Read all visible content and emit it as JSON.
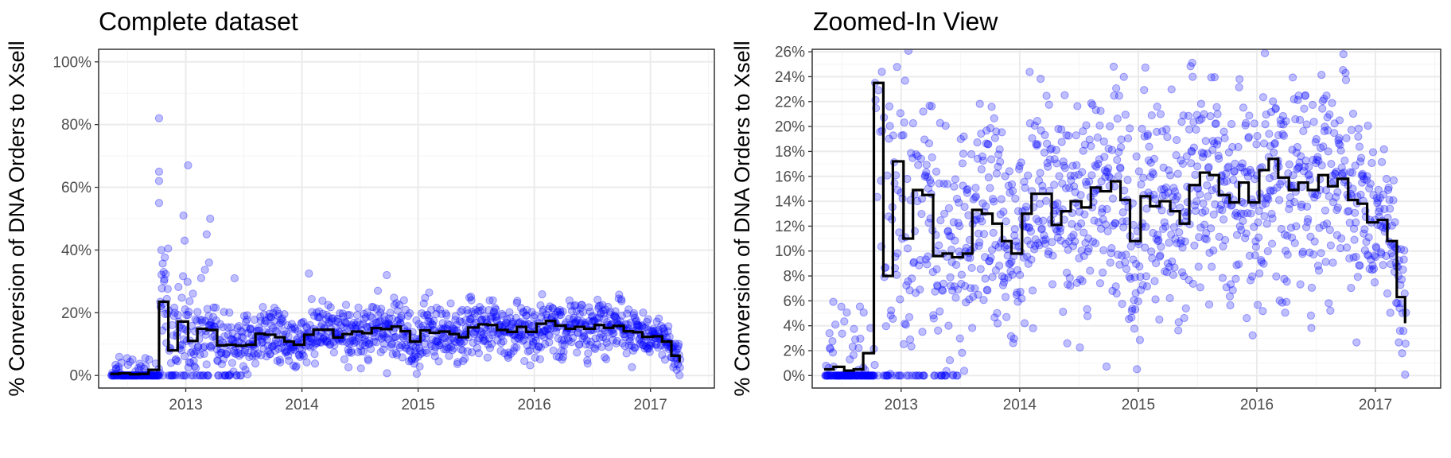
{
  "colors": {
    "points": "#0000ff",
    "step": "#000000"
  },
  "chart_data": [
    {
      "type": "scatter",
      "title": "Complete dataset",
      "ylabel": "% Conversion of DNA Orders to Xsell",
      "xlabel": "",
      "xlim": [
        2012.25,
        2017.55
      ],
      "ylim": [
        -4,
        104
      ],
      "x_ticks": [
        {
          "value": 2013,
          "label": "2013"
        },
        {
          "value": 2014,
          "label": "2014"
        },
        {
          "value": 2015,
          "label": "2015"
        },
        {
          "value": 2016,
          "label": "2016"
        },
        {
          "value": 2017,
          "label": "2017"
        }
      ],
      "y_ticks": [
        {
          "value": 0,
          "label": "0%"
        },
        {
          "value": 20,
          "label": "20%"
        },
        {
          "value": 40,
          "label": "40%"
        },
        {
          "value": 60,
          "label": "60%"
        },
        {
          "value": 80,
          "label": "80%"
        },
        {
          "value": 100,
          "label": "100%"
        }
      ],
      "y_minor": [
        10,
        30,
        50,
        70,
        90
      ],
      "grid": true,
      "legend": "none"
    },
    {
      "type": "scatter",
      "title": "Zoomed-In View",
      "ylabel": "% Conversion of DNA Orders to Xsell",
      "xlabel": "",
      "xlim": [
        2012.25,
        2017.55
      ],
      "ylim": [
        -1,
        26.2
      ],
      "x_ticks": [
        {
          "value": 2013,
          "label": "2013"
        },
        {
          "value": 2014,
          "label": "2014"
        },
        {
          "value": 2015,
          "label": "2015"
        },
        {
          "value": 2016,
          "label": "2016"
        },
        {
          "value": 2017,
          "label": "2017"
        }
      ],
      "y_ticks": [
        {
          "value": 0,
          "label": "0%"
        },
        {
          "value": 2,
          "label": "2%"
        },
        {
          "value": 4,
          "label": "4%"
        },
        {
          "value": 6,
          "label": "6%"
        },
        {
          "value": 8,
          "label": "8%"
        },
        {
          "value": 10,
          "label": "10%"
        },
        {
          "value": 12,
          "label": "12%"
        },
        {
          "value": 14,
          "label": "14%"
        },
        {
          "value": 16,
          "label": "16%"
        },
        {
          "value": 18,
          "label": "18%"
        },
        {
          "value": 20,
          "label": "20%"
        },
        {
          "value": 22,
          "label": "22%"
        },
        {
          "value": 24,
          "label": "24%"
        },
        {
          "value": 26,
          "label": "26%"
        }
      ],
      "y_minor": [
        1,
        3,
        5,
        7,
        9,
        11,
        13,
        15,
        17,
        19,
        21,
        23,
        25
      ],
      "grid": true,
      "legend": "none"
    }
  ],
  "monthly_step": {
    "x": [
      2012.35,
      2012.43,
      2012.52,
      2012.6,
      2012.68,
      2012.77,
      2012.85,
      2012.93,
      2013.02,
      2013.1,
      2013.18,
      2013.27,
      2013.35,
      2013.43,
      2013.52,
      2013.6,
      2013.68,
      2013.77,
      2013.85,
      2013.93,
      2014.02,
      2014.1,
      2014.18,
      2014.27,
      2014.35,
      2014.43,
      2014.52,
      2014.6,
      2014.68,
      2014.77,
      2014.85,
      2014.93,
      2015.02,
      2015.1,
      2015.18,
      2015.27,
      2015.35,
      2015.43,
      2015.52,
      2015.6,
      2015.68,
      2015.77,
      2015.85,
      2015.93,
      2016.02,
      2016.1,
      2016.18,
      2016.27,
      2016.35,
      2016.43,
      2016.52,
      2016.6,
      2016.68,
      2016.77,
      2016.85,
      2016.93,
      2017.02,
      2017.1,
      2017.18,
      2017.25
    ],
    "y": [
      0.5,
      0.7,
      0.4,
      0.5,
      1.8,
      23.5,
      8,
      17.2,
      11,
      14.9,
      14.5,
      9.6,
      9.8,
      9.5,
      9.8,
      13.3,
      13,
      12.2,
      10.8,
      9.8,
      13,
      14.6,
      14.6,
      12.1,
      13.2,
      14,
      13.5,
      15.1,
      14.8,
      15.6,
      14.1,
      10.8,
      14.4,
      13.6,
      14,
      13.2,
      12.2,
      15.3,
      16.3,
      16.1,
      14.5,
      13.9,
      15.5,
      13.9,
      16.5,
      17.4,
      15.9,
      14.9,
      15.5,
      14.9,
      16.1,
      15.2,
      15.8,
      14.1,
      13.8,
      12.3,
      12.5,
      10.8,
      6.3,
      4.2
    ]
  }
}
